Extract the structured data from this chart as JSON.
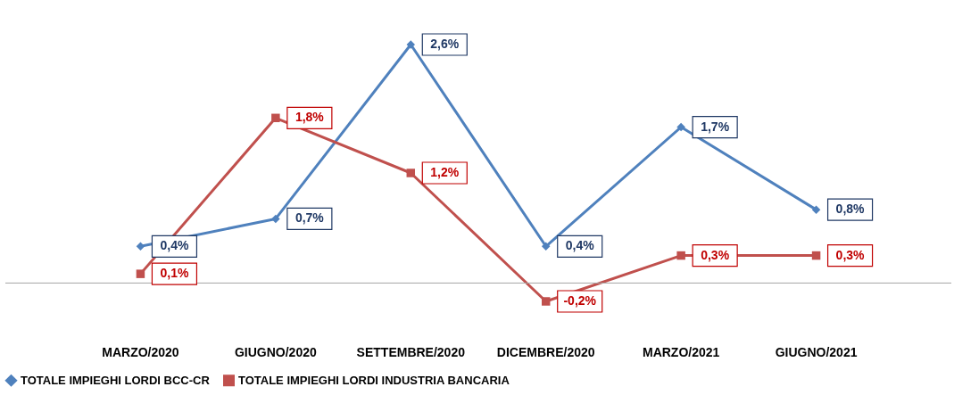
{
  "chart_data": {
    "type": "line",
    "categories": [
      "MARZO/2020",
      "GIUGNO/2020",
      "SETTEMBRE/2020",
      "DICEMBRE/2020",
      "MARZO/2021",
      "GIUGNO/2021"
    ],
    "grid": false,
    "legend": "bottom",
    "series": [
      {
        "name": "TOTALE IMPIEGHI LORDI BCC-CR",
        "color": "#4f81bd",
        "marker": "diamond",
        "values": [
          0.4,
          0.7,
          2.6,
          0.4,
          1.7,
          0.8
        ],
        "value_labels": [
          "0,4%",
          "0,7%",
          "2,6%",
          "0,4%",
          "1,7%",
          "0,8%"
        ]
      },
      {
        "name": "TOTALE IMPIEGHI LORDI INDUSTRIA BANCARIA",
        "color": "#c0504d",
        "marker": "square",
        "values": [
          0.1,
          1.8,
          1.2,
          -0.2,
          0.3,
          0.3
        ],
        "value_labels": [
          "0,1%",
          "1,8%",
          "1,2%",
          "-0,2%",
          "0,3%",
          "0,3%"
        ]
      }
    ]
  }
}
